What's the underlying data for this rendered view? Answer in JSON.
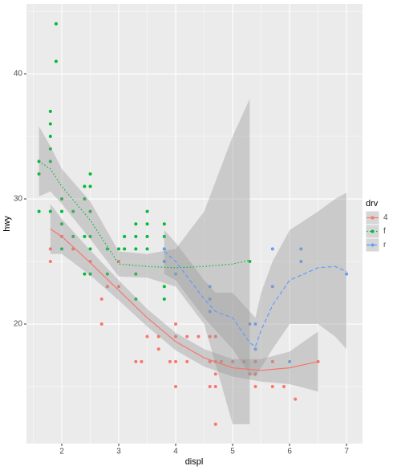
{
  "chart_data": {
    "type": "scatter",
    "x_label": "displ",
    "y_label": "hwy",
    "legend_title": "drv",
    "legend": "right",
    "grid": true,
    "xlim": [
      1.38,
      7.28
    ],
    "ylim": [
      10.45,
      45.58
    ],
    "xticks": [
      2,
      3,
      4,
      5,
      6,
      7
    ],
    "yticks": [
      20,
      30,
      40
    ],
    "xminorticks": [
      1.5,
      2.5,
      3.5,
      4.5,
      5.5,
      6.5
    ],
    "yminorticks": [
      15,
      25,
      35,
      45
    ],
    "series": [
      {
        "name": "4",
        "color": "#F8766D",
        "linetype": "solid",
        "x": [
          1.8,
          1.8,
          2.0,
          2.0,
          2.2,
          2.5,
          2.5,
          2.7,
          2.7,
          2.8,
          3.0,
          3.0,
          3.3,
          3.4,
          3.5,
          3.7,
          3.7,
          3.9,
          4.0,
          4.0,
          4.0,
          4.0,
          4.2,
          4.2,
          4.4,
          4.6,
          4.6,
          4.6,
          4.7,
          4.7,
          4.7,
          4.7,
          4.7,
          4.8,
          5.0,
          5.2,
          5.3,
          5.4,
          5.4,
          5.4,
          5.7,
          5.7,
          5.9,
          6.1,
          6.5
        ],
        "values": [
          26,
          25,
          28,
          27,
          26,
          25,
          24,
          20,
          22,
          23,
          25,
          23,
          17,
          17,
          19,
          18,
          19,
          17,
          17,
          19,
          20,
          15,
          17,
          19,
          19,
          17,
          19,
          15,
          15,
          16,
          17,
          19,
          12,
          17,
          17,
          17,
          16,
          17,
          16,
          15,
          17,
          15,
          15,
          14,
          17
        ],
        "smooth": {
          "x": [
            1.8,
            2.0,
            2.5,
            3.0,
            3.5,
            4.0,
            4.5,
            5.0,
            5.5,
            6.0,
            6.5
          ],
          "values": [
            27.6,
            27.0,
            24.9,
            22.7,
            20.5,
            18.6,
            17.3,
            16.5,
            16.3,
            16.5,
            17.0
          ],
          "lower": [
            25.6,
            25.6,
            23.9,
            21.9,
            19.8,
            17.9,
            16.6,
            15.8,
            15.4,
            15.2,
            14.6
          ],
          "upper": [
            29.6,
            28.4,
            25.9,
            23.5,
            21.2,
            19.3,
            18.0,
            17.2,
            17.2,
            17.8,
            19.4
          ]
        }
      },
      {
        "name": "f",
        "color": "#00BA38",
        "linetype": "dotted",
        "x": [
          1.6,
          1.6,
          1.6,
          1.8,
          1.8,
          1.8,
          1.8,
          1.8,
          1.8,
          1.9,
          1.9,
          2.0,
          2.0,
          2.0,
          2.0,
          2.2,
          2.2,
          2.4,
          2.4,
          2.4,
          2.4,
          2.5,
          2.5,
          2.5,
          2.5,
          2.5,
          2.5,
          2.8,
          2.8,
          3.0,
          3.1,
          3.1,
          3.3,
          3.3,
          3.3,
          3.3,
          3.3,
          3.5,
          3.5,
          3.5,
          3.5,
          3.8,
          3.8,
          3.8,
          3.8,
          3.8,
          3.8,
          5.3
        ],
        "values": [
          33,
          32,
          29,
          37,
          36,
          35,
          34,
          33,
          29,
          44,
          41,
          29,
          26,
          28,
          30,
          27,
          29,
          31,
          30,
          27,
          24,
          32,
          31,
          29,
          27,
          26,
          24,
          26,
          24,
          26,
          27,
          26,
          28,
          27,
          26,
          24,
          22,
          29,
          28,
          26,
          27,
          28,
          26,
          27,
          25,
          23,
          22,
          25
        ],
        "smooth": {
          "x": [
            1.6,
            1.8,
            2.0,
            2.5,
            3.0,
            3.5,
            4.0,
            4.5,
            5.0,
            5.3
          ],
          "values": [
            33.0,
            32.4,
            31.0,
            28.3,
            24.8,
            24.6,
            24.5,
            24.6,
            24.8,
            25.1
          ],
          "lower": [
            30.2,
            30.6,
            29.6,
            26.8,
            23.8,
            23.7,
            23.0,
            20.0,
            12.0,
            12.0
          ],
          "upper": [
            35.8,
            34.2,
            32.4,
            29.8,
            25.8,
            25.6,
            26.0,
            29.0,
            35.0,
            38.0
          ]
        }
      },
      {
        "name": "r",
        "color": "#619CFF",
        "linetype": "dashed",
        "x": [
          3.8,
          3.8,
          4.0,
          4.6,
          4.6,
          4.6,
          5.3,
          5.4,
          5.4,
          5.7,
          5.7,
          6.0,
          6.2,
          6.2,
          7.0
        ],
        "values": [
          26,
          25,
          24,
          23,
          22,
          21,
          20,
          18,
          20,
          26,
          23,
          17,
          26,
          25,
          24
        ],
        "smooth": {
          "x": [
            3.8,
            4.0,
            4.5,
            4.7,
            5.0,
            5.3,
            5.4,
            5.5,
            5.7,
            6.0,
            6.5,
            6.8,
            7.0
          ],
          "values": [
            25.8,
            25.0,
            22.0,
            21.0,
            20.5,
            18.5,
            18.2,
            19.5,
            21.5,
            23.5,
            24.5,
            24.6,
            24.2
          ],
          "lower": [
            24.0,
            23.5,
            20.5,
            19.5,
            18.0,
            16.0,
            15.8,
            16.5,
            18.0,
            20.0,
            20.0,
            19.0,
            18.0
          ],
          "upper": [
            27.5,
            26.5,
            23.5,
            22.5,
            22.5,
            21.0,
            20.5,
            22.5,
            25.0,
            27.5,
            29.0,
            30.0,
            30.5
          ]
        }
      }
    ]
  }
}
